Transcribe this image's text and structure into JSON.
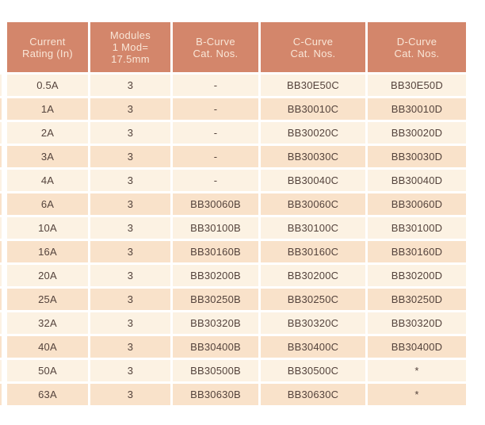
{
  "page": {
    "background": "#FFFFFF"
  },
  "table": {
    "name": "mcb-catalog-ratings-table",
    "columns": [
      {
        "id": "current-rating",
        "lines": [
          "Current",
          "Rating (In)"
        ]
      },
      {
        "id": "modules",
        "lines": [
          "Modules",
          "1 Mod=",
          "17.5mm"
        ]
      },
      {
        "id": "b-curve",
        "lines": [
          "B-Curve",
          "Cat. Nos."
        ]
      },
      {
        "id": "c-curve",
        "lines": [
          "C-Curve",
          "Cat. Nos."
        ]
      },
      {
        "id": "d-curve",
        "lines": [
          "D-Curve",
          "Cat. Nos."
        ]
      }
    ],
    "rows": [
      [
        "0.5A",
        "3",
        "-",
        "BB30E50C",
        "BB30E50D"
      ],
      [
        "1A",
        "3",
        "-",
        "BB30010C",
        "BB30010D"
      ],
      [
        "2A",
        "3",
        "-",
        "BB30020C",
        "BB30020D"
      ],
      [
        "3A",
        "3",
        "-",
        "BB30030C",
        "BB30030D"
      ],
      [
        "4A",
        "3",
        "-",
        "BB30040C",
        "BB30040D"
      ],
      [
        "6A",
        "3",
        "BB30060B",
        "BB30060C",
        "BB30060D"
      ],
      [
        "10A",
        "3",
        "BB30100B",
        "BB30100C",
        "BB30100D"
      ],
      [
        "16A",
        "3",
        "BB30160B",
        "BB30160C",
        "BB30160D"
      ],
      [
        "20A",
        "3",
        "BB30200B",
        "BB30200C",
        "BB30200D"
      ],
      [
        "25A",
        "3",
        "BB30250B",
        "BB30250C",
        "BB30250D"
      ],
      [
        "32A",
        "3",
        "BB30320B",
        "BB30320C",
        "BB30320D"
      ],
      [
        "40A",
        "3",
        "BB30400B",
        "BB30400C",
        "BB30400D"
      ],
      [
        "50A",
        "3",
        "BB30500B",
        "BB30500C",
        "*"
      ],
      [
        "63A",
        "3",
        "BB30630B",
        "BB30630C",
        "*"
      ]
    ],
    "colors": {
      "header_bg": "#D3866B",
      "header_text": "#F9E6D7",
      "row_light": "#FCF2E3",
      "row_dark": "#F9E2CA",
      "body_text": "#54433C",
      "page_bg": "#FFFFFF"
    }
  }
}
